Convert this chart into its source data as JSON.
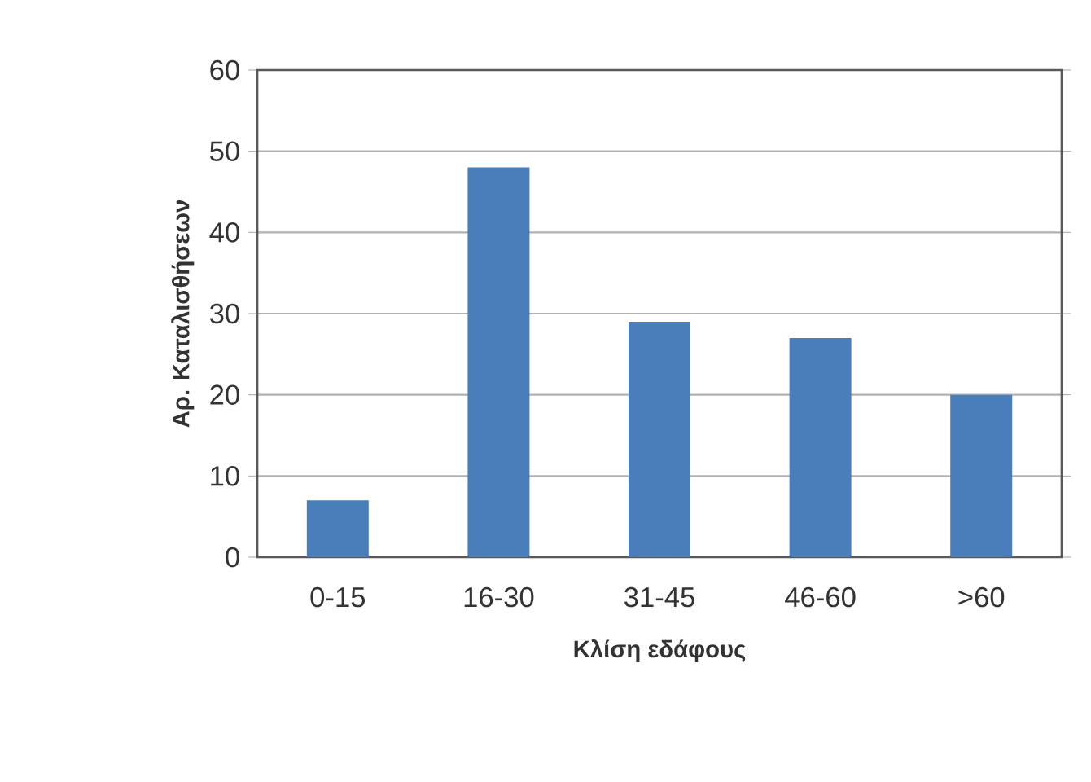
{
  "chart_data": {
    "type": "bar",
    "xlabel": "Κλίση εδάφους",
    "ylabel": "Αρ. Καταλισθήσεων",
    "categories": [
      "0-15",
      "16-30",
      "31-45",
      "46-60",
      ">60"
    ],
    "values": [
      7,
      48,
      29,
      27,
      20
    ],
    "color": "#4a7ebb",
    "ylim": [
      0,
      60
    ],
    "yticks": [
      0,
      10,
      20,
      30,
      40,
      50,
      60
    ],
    "grid": "y"
  }
}
